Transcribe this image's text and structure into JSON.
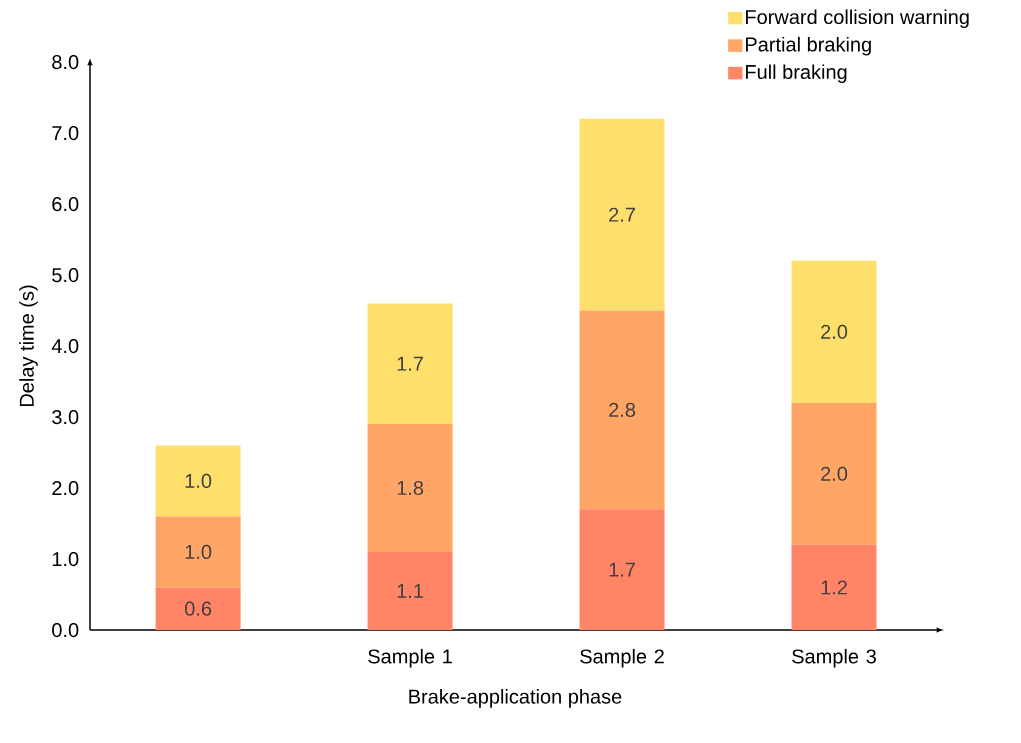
{
  "chart_data": {
    "type": "bar",
    "stacked": true,
    "xlabel": "Brake-application phase",
    "ylabel": "Delay time (s)",
    "categories": [
      null,
      "Sample 1",
      "Sample 2",
      "Sample 3"
    ],
    "series": [
      {
        "name": "Full braking",
        "color": "#ff8566",
        "values": [
          0.6,
          1.1,
          1.7,
          1.2
        ],
        "value_labels": [
          "0.6",
          "1.1",
          "1.7",
          "1.2"
        ]
      },
      {
        "name": "Partial braking",
        "color": "#ffa566",
        "values": [
          1.0,
          1.8,
          2.8,
          2.0
        ],
        "value_labels": [
          "1.0",
          "1.8",
          "2.8",
          "2.0"
        ]
      },
      {
        "name": "Forward collision warning",
        "color": "#ffdf6b",
        "values": [
          1.0,
          1.7,
          2.7,
          2.0
        ],
        "value_labels": [
          "1.0",
          "1.7",
          "2.7",
          "2.0"
        ]
      }
    ],
    "ylim": [
      0,
      8
    ],
    "yticks": [
      {
        "value": 0,
        "label": "0.0"
      },
      {
        "value": 1,
        "label": "1.0"
      },
      {
        "value": 2,
        "label": "2.0"
      },
      {
        "value": 3,
        "label": "3.0"
      },
      {
        "value": 4,
        "label": "4.0"
      },
      {
        "value": 5,
        "label": "5.0"
      },
      {
        "value": 6,
        "label": "6.0"
      },
      {
        "value": 7,
        "label": "7.0"
      },
      {
        "value": 8,
        "label": "8.0"
      }
    ],
    "legend": "top right",
    "grid": false
  }
}
